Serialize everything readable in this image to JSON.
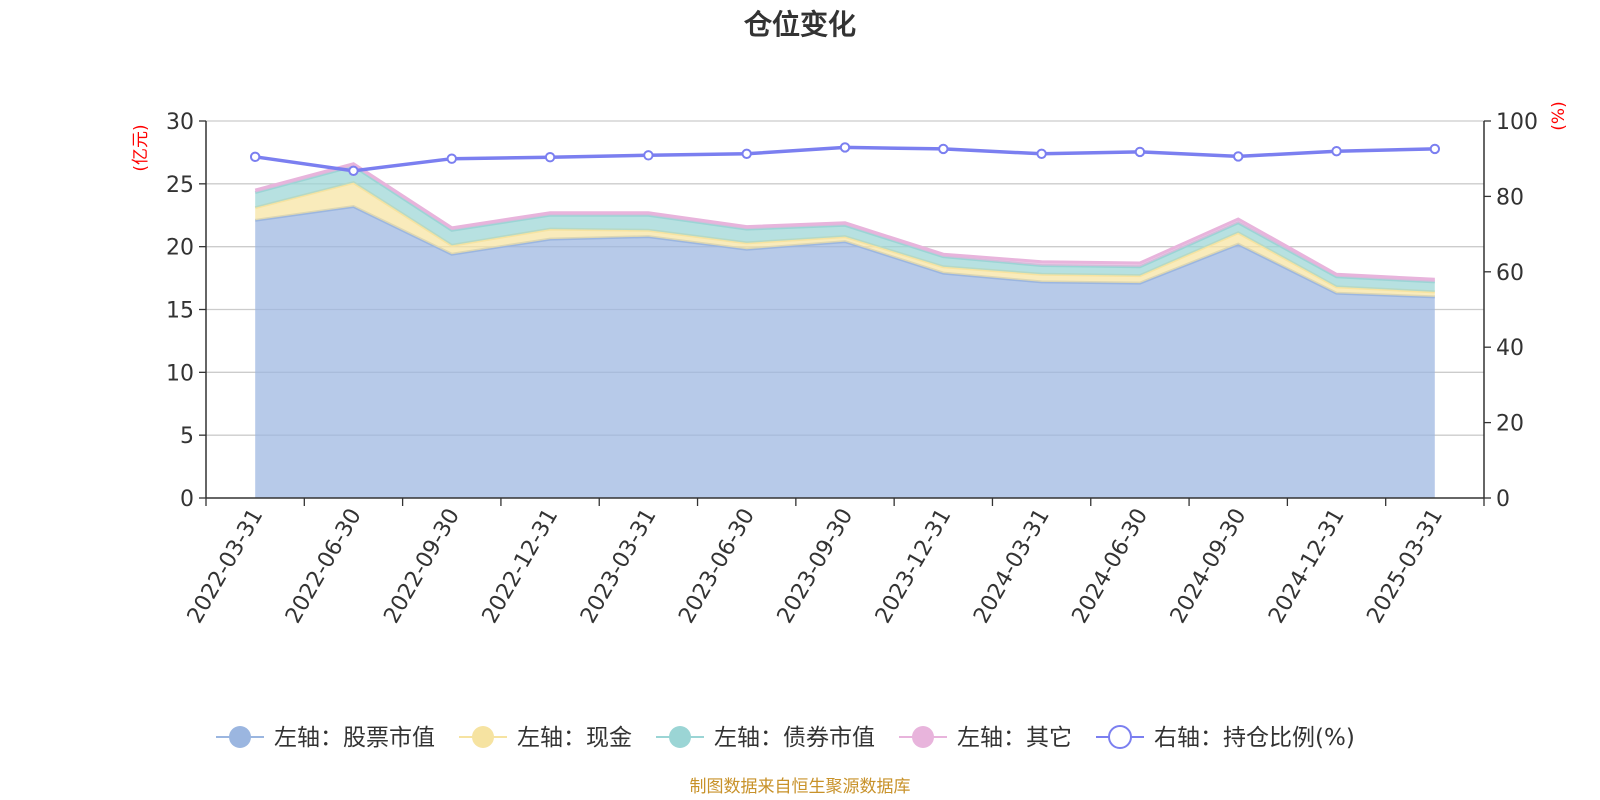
{
  "chart_data": {
    "type": "area",
    "title": "仓位变化",
    "x": [
      "2022-03-31",
      "2022-06-30",
      "2022-09-30",
      "2022-12-31",
      "2023-03-31",
      "2023-06-30",
      "2023-09-30",
      "2023-12-31",
      "2024-03-31",
      "2024-06-30",
      "2024-09-30",
      "2024-12-31",
      "2025-03-31"
    ],
    "y_left": {
      "unit": "(亿元)",
      "ylim": [
        0,
        30
      ],
      "ticks": [
        "0",
        "5",
        "10",
        "15",
        "20",
        "25",
        "30"
      ]
    },
    "y_right": {
      "unit": "(%)",
      "ylim": [
        0,
        100
      ],
      "ticks": [
        "0",
        "20",
        "40",
        "60",
        "80",
        "100"
      ]
    },
    "series": [
      {
        "name": "左轴：股票市值",
        "axis": "left",
        "stacked": true,
        "color": "#9bb6e0",
        "values": [
          22.1,
          23.2,
          19.4,
          20.6,
          20.8,
          19.8,
          20.4,
          17.9,
          17.2,
          17.1,
          20.2,
          16.3,
          16.0
        ]
      },
      {
        "name": "左轴：现金",
        "axis": "left",
        "stacked": true,
        "color": "#f6e3a1",
        "values": [
          1.0,
          1.9,
          0.7,
          0.8,
          0.5,
          0.5,
          0.4,
          0.5,
          0.6,
          0.6,
          0.9,
          0.5,
          0.4
        ]
      },
      {
        "name": "左轴：债券市值",
        "axis": "left",
        "stacked": true,
        "color": "#9bd5d5",
        "values": [
          1.2,
          1.3,
          1.2,
          1.1,
          1.2,
          1.1,
          0.9,
          0.8,
          0.7,
          0.7,
          0.8,
          0.8,
          0.8
        ]
      },
      {
        "name": "左轴：其它",
        "axis": "left",
        "stacked": true,
        "color": "#e8b4dc",
        "values": [
          0.2,
          0.2,
          0.2,
          0.2,
          0.2,
          0.2,
          0.2,
          0.2,
          0.3,
          0.3,
          0.3,
          0.2,
          0.2
        ]
      },
      {
        "name": "右轴：持仓比例(%)",
        "axis": "right",
        "type": "line",
        "color": "#7b7ff0",
        "values": [
          90.5,
          86.8,
          90.0,
          90.4,
          90.9,
          91.3,
          93.0,
          92.6,
          91.3,
          91.8,
          90.6,
          92.0,
          92.6
        ]
      }
    ],
    "legend_position": "bottom",
    "grid": true
  },
  "footer": {
    "source": "制图数据来自恒生聚源数据库"
  }
}
